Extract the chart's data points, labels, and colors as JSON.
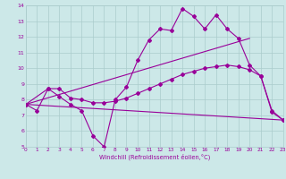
{
  "xlabel": "Windchill (Refroidissement éolien,°C)",
  "xlim": [
    0,
    23
  ],
  "ylim": [
    5,
    14
  ],
  "xtick_labels": [
    "0",
    "1",
    "2",
    "3",
    "4",
    "5",
    "6",
    "7",
    "8",
    "9",
    "10",
    "11",
    "12",
    "13",
    "14",
    "15",
    "16",
    "17",
    "18",
    "19",
    "20",
    "21",
    "22",
    "23"
  ],
  "ytick_labels": [
    "5",
    "6",
    "7",
    "8",
    "9",
    "10",
    "11",
    "12",
    "13",
    "14"
  ],
  "bg_color": "#cce8e8",
  "grid_color": "#aacccc",
  "line_color": "#990099",
  "series1_x": [
    0,
    1,
    2,
    3,
    4,
    5,
    6,
    7,
    8,
    9,
    10,
    11,
    12,
    13,
    14,
    15,
    16,
    17,
    18,
    19,
    20,
    21,
    22,
    23
  ],
  "series1_y": [
    7.7,
    7.3,
    8.7,
    8.2,
    7.7,
    7.3,
    5.7,
    5.0,
    8.0,
    8.8,
    10.5,
    11.8,
    12.5,
    12.4,
    13.8,
    13.3,
    12.5,
    13.4,
    12.5,
    11.9,
    10.2,
    9.5,
    7.2,
    6.7
  ],
  "series2_x": [
    0,
    2,
    3,
    4,
    5,
    6,
    7,
    8,
    9,
    10,
    11,
    12,
    13,
    14,
    15,
    16,
    17,
    18,
    19,
    20,
    21,
    22,
    23
  ],
  "series2_y": [
    7.7,
    8.7,
    8.7,
    8.1,
    8.0,
    7.8,
    7.8,
    7.9,
    8.1,
    8.4,
    8.7,
    9.0,
    9.3,
    9.6,
    9.8,
    10.0,
    10.1,
    10.2,
    10.1,
    9.9,
    9.5,
    7.3,
    6.7
  ],
  "series3_x": [
    0,
    20
  ],
  "series3_y": [
    7.7,
    11.9
  ],
  "series4_x": [
    0,
    23
  ],
  "series4_y": [
    7.7,
    6.7
  ]
}
